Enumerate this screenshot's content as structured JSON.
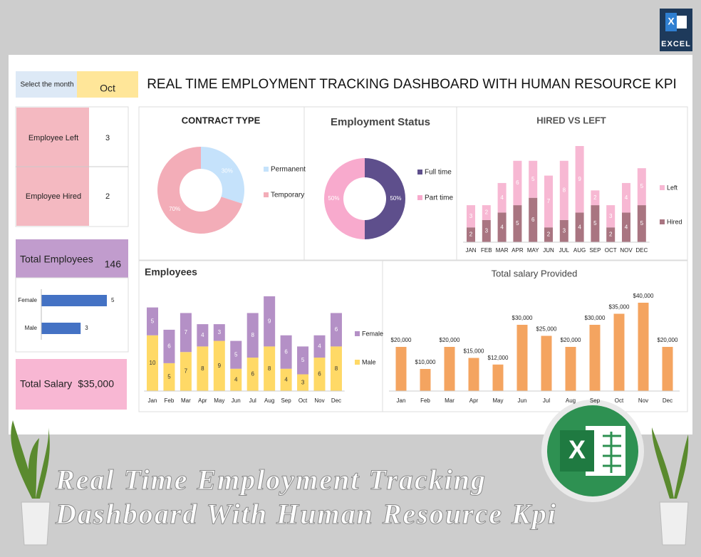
{
  "header": {
    "month_label": "Select the month",
    "month": "Oct",
    "title": "REAL TIME EMPLOYMENT TRACKING DASHBOARD WITH HUMAN RESOURCE KPI"
  },
  "kpis": {
    "left_label": "Employee Left",
    "left": 3,
    "hired_label": "Employee Hired",
    "hired": 2,
    "total_label": "Total Employees",
    "total": 146,
    "salary_label": "Total Salary",
    "salary": "$35,000"
  },
  "badge": {
    "logo": "X",
    "label": "EXCEL"
  },
  "footer": {
    "lines": [
      "Real Time Employment Tracking",
      "Dashboard With Human Resource Kpi"
    ]
  },
  "chart_data": [
    {
      "type": "pie",
      "donut": true,
      "title": "CONTRACT TYPE",
      "categories": [
        "Permanent",
        "Temporary"
      ],
      "values": [
        30,
        70
      ],
      "value_labels": [
        "30%",
        "70%"
      ],
      "colors": [
        "#c5e2fb",
        "#f3adb8"
      ]
    },
    {
      "type": "pie",
      "donut": true,
      "title": "Employment Status",
      "categories": [
        "Full time",
        "Part time"
      ],
      "values": [
        50,
        50
      ],
      "value_labels": [
        "50%",
        "50%"
      ],
      "colors": [
        "#5e4f8c",
        "#f8aacd"
      ]
    },
    {
      "type": "bar",
      "stacked": true,
      "title": "HIRED VS LEFT",
      "categories": [
        "JAN",
        "FEB",
        "MAR",
        "APR",
        "MAY",
        "JUN",
        "JUL",
        "AUG",
        "SEP",
        "OCT",
        "NOV",
        "DEC"
      ],
      "series": [
        {
          "name": "Hired",
          "color": "#a97581",
          "values": [
            2,
            3,
            4,
            5,
            6,
            2,
            3,
            4,
            5,
            2,
            4,
            5
          ]
        },
        {
          "name": "Left",
          "color": "#f7b8d3",
          "values": [
            3,
            2,
            4,
            6,
            5,
            7,
            8,
            9,
            2,
            3,
            4,
            5
          ]
        }
      ]
    },
    {
      "type": "bar",
      "orientation": "horizontal",
      "categories": [
        "Female",
        "Male"
      ],
      "values": [
        5,
        3
      ],
      "color": "#4472c4"
    },
    {
      "type": "bar",
      "stacked": true,
      "title": "Employees",
      "categories": [
        "Jan",
        "Feb",
        "Mar",
        "Apr",
        "May",
        "Jun",
        "Jul",
        "Aug",
        "Sep",
        "Oct",
        "Nov",
        "Dec"
      ],
      "series": [
        {
          "name": "Male",
          "color": "#ffd966",
          "values": [
            10,
            5,
            7,
            8,
            9,
            4,
            6,
            8,
            4,
            3,
            6,
            8
          ]
        },
        {
          "name": "Female",
          "color": "#b490c6",
          "values": [
            5,
            6,
            7,
            4,
            3,
            5,
            8,
            9,
            6,
            5,
            4,
            6
          ]
        }
      ]
    },
    {
      "type": "bar",
      "title": "Total salary Provided",
      "categories": [
        "Jan",
        "Feb",
        "Mar",
        "Apr",
        "May",
        "Jun",
        "Jul",
        "Aug",
        "Sep",
        "Oct",
        "Nov",
        "Dec"
      ],
      "values": [
        20000,
        10000,
        20000,
        15000,
        12000,
        30000,
        25000,
        20000,
        30000,
        35000,
        40000,
        20000
      ],
      "value_labels": [
        "$20,000",
        "$10,000",
        "$20,000",
        "$15,000",
        "$12,000",
        "$30,000",
        "$25,000",
        "$20,000",
        "$30,000",
        "$35,000",
        "$40,000",
        "$20,000"
      ],
      "color": "#f4a460"
    }
  ]
}
